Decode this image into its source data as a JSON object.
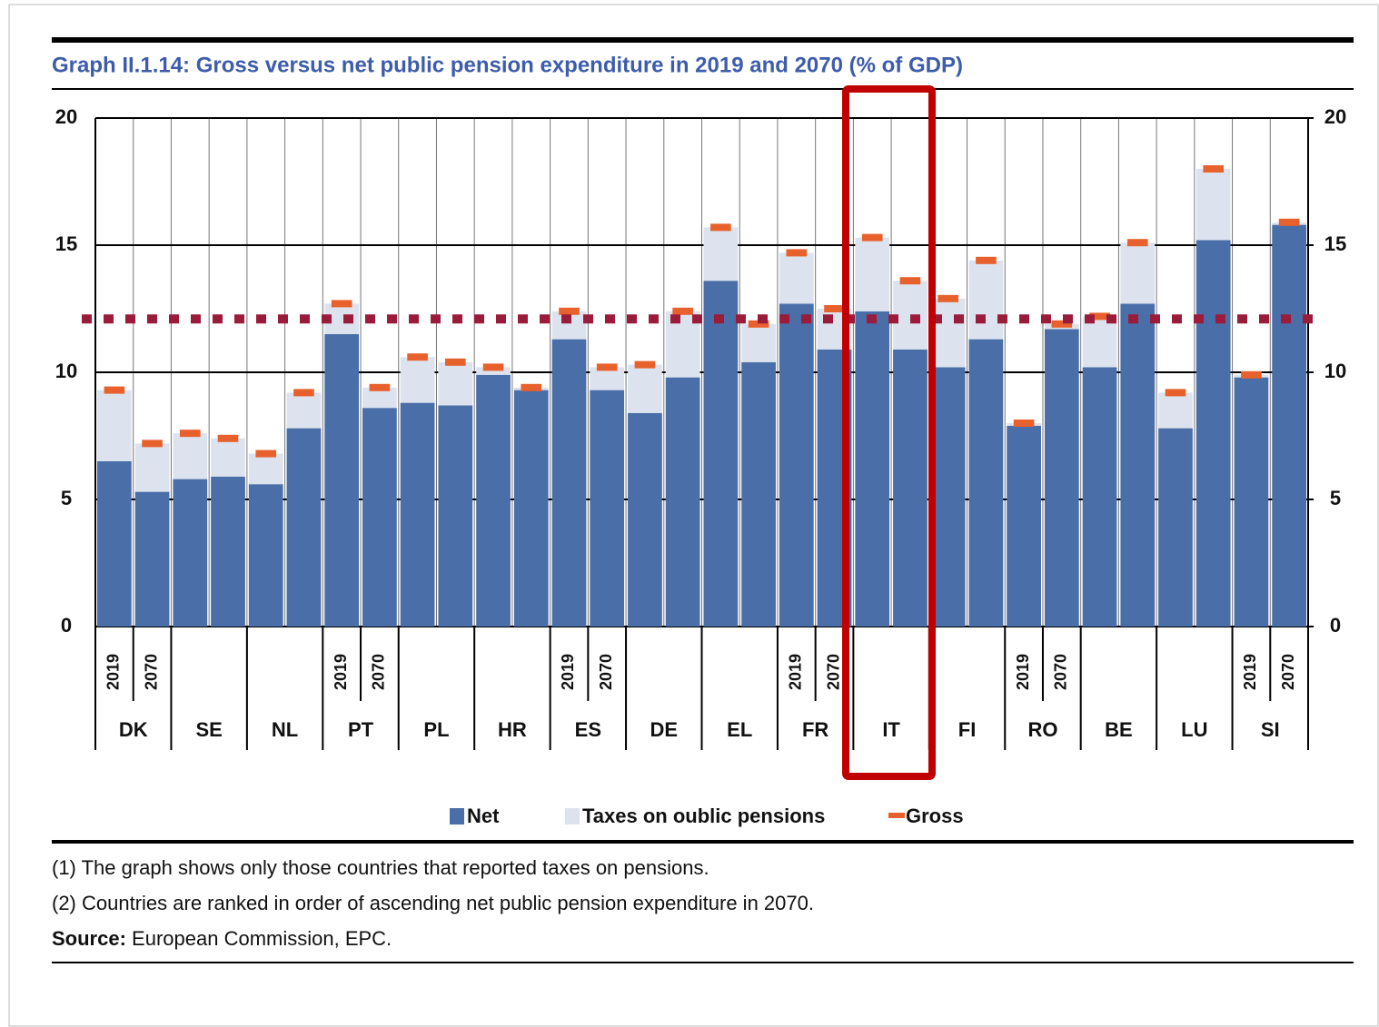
{
  "chart_data": {
    "type": "stacked_bar",
    "title": "Graph II.1.14: Gross versus net public pension expenditure in 2019 and 2070 (% of GDP)",
    "groups": [
      "DK",
      "SE",
      "NL",
      "PT",
      "PL",
      "HR",
      "ES",
      "DE",
      "EL",
      "FR",
      "IT",
      "FI",
      "RO",
      "BE",
      "LU",
      "SI"
    ],
    "categories": [
      "2019",
      "2070",
      null,
      null,
      null,
      null,
      "2019",
      "2070",
      null,
      null,
      null,
      null,
      "2019",
      "2070",
      null,
      null,
      null,
      null,
      "2019",
      "2070",
      null,
      null,
      null,
      null,
      "2019",
      "2070",
      null,
      null,
      null,
      null,
      "2019",
      "2070"
    ],
    "series": [
      {
        "name": "Net",
        "color": "#4a6ea8",
        "values": [
          6.5,
          5.3,
          5.8,
          5.9,
          5.6,
          7.8,
          11.5,
          8.6,
          8.8,
          8.7,
          9.9,
          9.3,
          11.3,
          9.3,
          8.4,
          9.8,
          13.6,
          10.4,
          12.7,
          10.9,
          12.4,
          10.9,
          10.2,
          11.3,
          7.9,
          11.7,
          10.2,
          12.7,
          7.8,
          15.2,
          9.8,
          15.8
        ]
      },
      {
        "name": "Taxes on oublic pensions",
        "color": "#dde3ee",
        "values": [
          2.8,
          1.9,
          1.8,
          1.5,
          1.2,
          1.4,
          1.2,
          0.8,
          1.8,
          1.7,
          0.3,
          0.1,
          1.1,
          0.9,
          1.9,
          2.6,
          2.1,
          1.5,
          2.0,
          1.6,
          2.9,
          2.7,
          2.7,
          3.1,
          0.1,
          0.2,
          2.0,
          2.4,
          1.4,
          2.8,
          0.1,
          0.1
        ]
      },
      {
        "name": "Gross",
        "color": "#e8612c",
        "values": [
          9.3,
          7.2,
          7.6,
          7.4,
          6.8,
          9.2,
          12.7,
          9.4,
          10.6,
          10.4,
          10.2,
          9.4,
          12.4,
          10.2,
          10.3,
          12.4,
          15.7,
          11.9,
          14.7,
          12.5,
          15.3,
          13.6,
          12.9,
          14.4,
          8.0,
          11.9,
          12.2,
          15.1,
          9.2,
          18.0,
          9.9,
          15.9
        ]
      }
    ],
    "reference_line": 12.1,
    "ylim": [
      0,
      20
    ],
    "yticks": [
      0,
      5,
      10,
      15,
      20
    ],
    "y2lim": [
      0,
      20
    ],
    "y2ticks": [
      0,
      5,
      10,
      15,
      20
    ],
    "grid": true,
    "notes": [
      "(1) The graph shows only those countries that reported taxes on pensions.",
      "(2) Countries are ranked in order of ascending net public pension expenditure in 2070."
    ],
    "source": {
      "label": "Source:",
      "text": "European Commission, EPC."
    }
  }
}
